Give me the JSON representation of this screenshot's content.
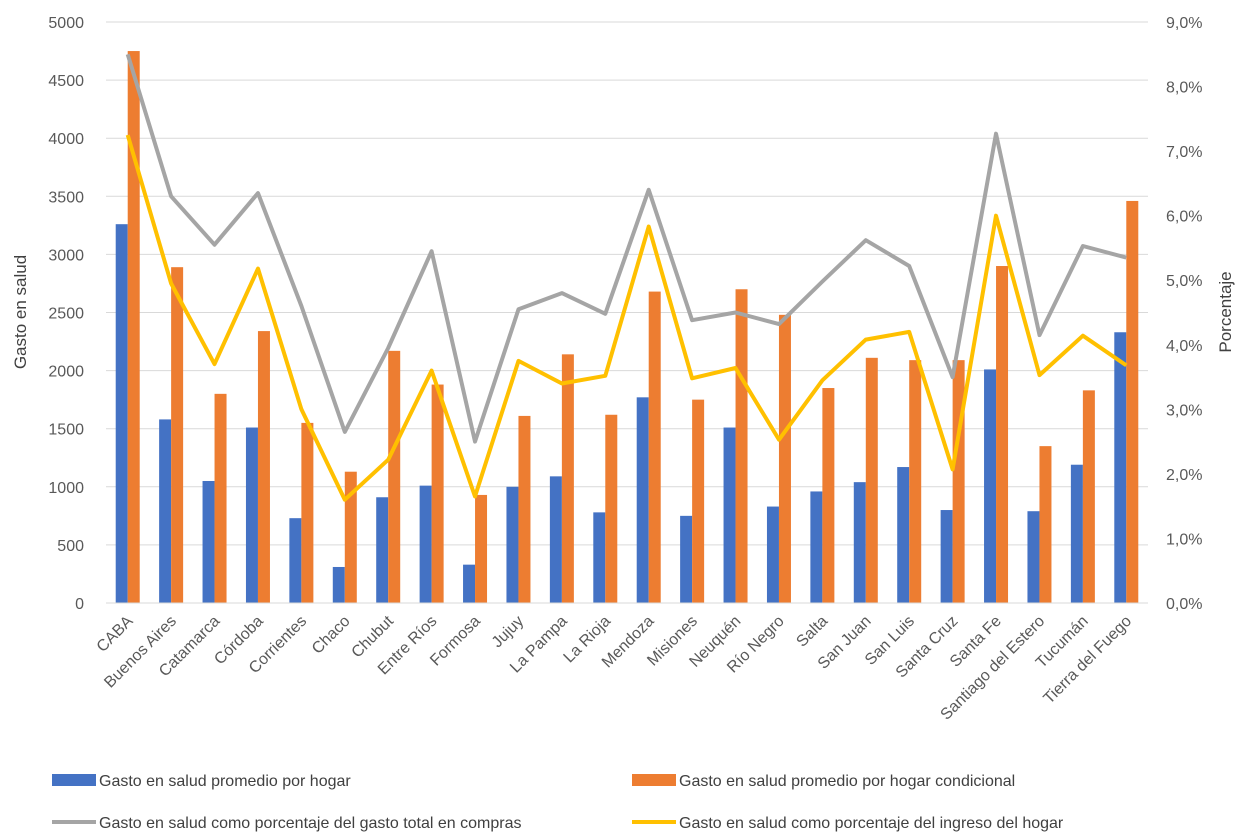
{
  "chart_data": {
    "type": "bar",
    "categories": [
      "CABA",
      "Buenos Aires",
      "Catamarca",
      "Córdoba",
      "Corrientes",
      "Chaco",
      "Chubut",
      "Entre Ríos",
      "Formosa",
      "Jujuy",
      "La Pampa",
      "La Rioja",
      "Mendoza",
      "Misiones",
      "Neuquén",
      "Río Negro",
      "Salta",
      "San Juan",
      "San Luis",
      "Santa Cruz",
      "Santa Fe",
      "Santiago del Estero",
      "Tucumán",
      "Tierra del Fuego"
    ],
    "ylabel": "Gasto en salud",
    "y2label": "Porcentaje",
    "ylim": [
      0,
      5000
    ],
    "y2lim": [
      0,
      9
    ],
    "yticks": [
      "0",
      "500",
      "1000",
      "1500",
      "2000",
      "2500",
      "3000",
      "3500",
      "4000",
      "4500",
      "5000"
    ],
    "y2ticks": [
      "0,0%",
      "1,0%",
      "2,0%",
      "3,0%",
      "4,0%",
      "5,0%",
      "6,0%",
      "7,0%",
      "8,0%",
      "9,0%"
    ],
    "legend_position": "bottom",
    "series": [
      {
        "name": "Gasto en salud promedio por hogar",
        "kind": "bar",
        "axis": "left",
        "color": "#4472C4",
        "values": [
          3260,
          1580,
          1050,
          1510,
          730,
          310,
          910,
          1010,
          330,
          1000,
          1090,
          780,
          1770,
          750,
          1510,
          830,
          960,
          1040,
          1170,
          800,
          2010,
          790,
          1190,
          2330
        ]
      },
      {
        "name": "Gasto en salud promedio por hogar condicional",
        "kind": "bar",
        "axis": "left",
        "color": "#ED7D31",
        "values": [
          4750,
          2890,
          1800,
          2340,
          1550,
          1130,
          2170,
          1880,
          930,
          1610,
          2140,
          1620,
          2680,
          1750,
          2700,
          2480,
          1850,
          2110,
          2090,
          2090,
          2900,
          1350,
          1830,
          3460
        ]
      },
      {
        "name": "Gasto en salud como porcentaje del gasto total en compras",
        "kind": "line",
        "axis": "right",
        "color": "#A5A5A5",
        "values": [
          8.5,
          6.3,
          5.55,
          6.35,
          4.6,
          2.65,
          3.95,
          5.45,
          2.5,
          4.55,
          4.8,
          4.48,
          6.4,
          4.38,
          4.5,
          4.32,
          4.98,
          5.62,
          5.22,
          3.5,
          7.27,
          4.15,
          5.53,
          5.35
        ]
      },
      {
        "name": "Gasto en salud como porcentaje del ingreso del hogar",
        "kind": "line",
        "axis": "right",
        "color": "#FFC000",
        "values": [
          7.25,
          4.95,
          3.7,
          5.18,
          3.0,
          1.6,
          2.22,
          3.6,
          1.65,
          3.75,
          3.4,
          3.52,
          5.83,
          3.48,
          3.64,
          2.53,
          3.45,
          4.08,
          4.2,
          2.07,
          6.0,
          3.53,
          4.14,
          3.68
        ]
      }
    ]
  }
}
